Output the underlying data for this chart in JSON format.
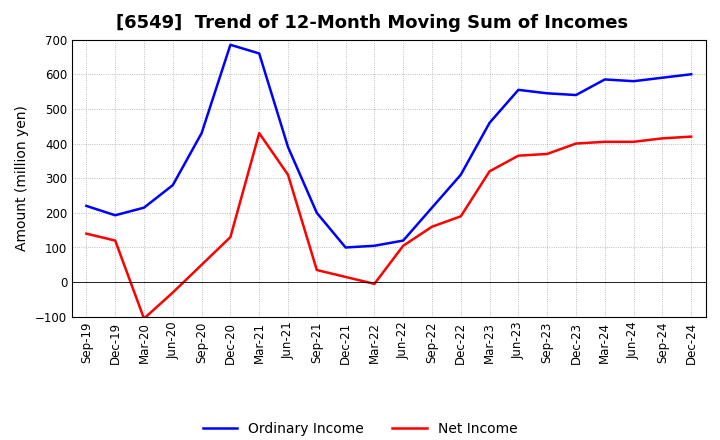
{
  "title": "[6549]  Trend of 12-Month Moving Sum of Incomes",
  "ylabel": "Amount (million yen)",
  "ylim": [
    -100,
    700
  ],
  "yticks": [
    -100,
    0,
    100,
    200,
    300,
    400,
    500,
    600,
    700
  ],
  "labels": [
    "Sep-19",
    "Dec-19",
    "Mar-20",
    "Jun-20",
    "Sep-20",
    "Dec-20",
    "Mar-21",
    "Jun-21",
    "Sep-21",
    "Dec-21",
    "Mar-22",
    "Jun-22",
    "Sep-22",
    "Dec-22",
    "Mar-23",
    "Jun-23",
    "Sep-23",
    "Dec-23",
    "Mar-24",
    "Jun-24",
    "Sep-24",
    "Dec-24"
  ],
  "ordinary_income": [
    220,
    193,
    215,
    280,
    430,
    685,
    660,
    390,
    200,
    100,
    105,
    120,
    215,
    310,
    460,
    555,
    545,
    540,
    585,
    580,
    590,
    600
  ],
  "net_income": [
    140,
    120,
    -105,
    -30,
    50,
    130,
    430,
    310,
    35,
    15,
    -5,
    105,
    160,
    190,
    320,
    365,
    370,
    400,
    405,
    405,
    415,
    420
  ],
  "ordinary_color": "#0000FF",
  "net_color": "#FF0000",
  "legend_labels": [
    "Ordinary Income",
    "Net Income"
  ],
  "background_color": "#FFFFFF",
  "grid_color": "#888888",
  "title_fontsize": 13,
  "ylabel_fontsize": 10,
  "tick_fontsize": 8.5,
  "legend_fontsize": 10
}
